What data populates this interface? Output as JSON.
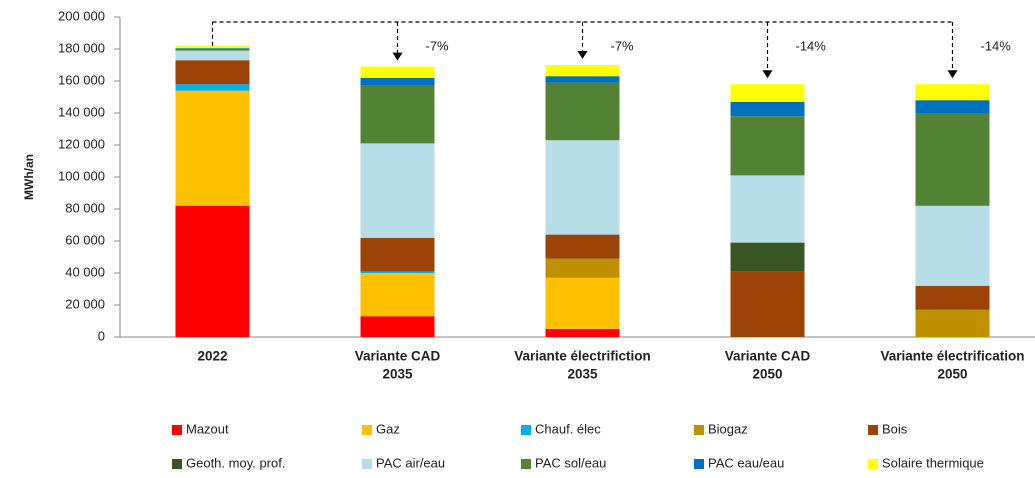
{
  "chart_data": {
    "type": "stacked_bar",
    "ylabel": "MWh/an",
    "categories": [
      [
        "2022"
      ],
      [
        "Variante CAD",
        "2035"
      ],
      [
        "Variante électrifiction",
        "2035"
      ],
      [
        "Variante CAD",
        "2050"
      ],
      [
        "Variante électrification",
        "2050"
      ]
    ],
    "series": [
      {
        "name": "Mazout",
        "color": "#ff0000",
        "values": [
          82000,
          13000,
          5000,
          0,
          0
        ]
      },
      {
        "name": "Gaz",
        "color": "#ffc000",
        "values": [
          72000,
          27000,
          32000,
          0,
          0
        ]
      },
      {
        "name": "Chauf. élec",
        "color": "#00b0f0",
        "values": [
          4000,
          1000,
          0,
          0,
          0
        ]
      },
      {
        "name": "Biogaz",
        "color": "#bf9000",
        "values": [
          0,
          0,
          12000,
          0,
          17000
        ]
      },
      {
        "name": "Bois",
        "color": "#9c4308",
        "values": [
          15000,
          21000,
          15000,
          41000,
          15000
        ]
      },
      {
        "name": "Geoth. moy. prof.",
        "color": "#375623",
        "values": [
          0,
          0,
          0,
          18000,
          0
        ]
      },
      {
        "name": "PAC air/eau",
        "color": "#b7dde8",
        "values": [
          6000,
          59000,
          59000,
          42000,
          50000
        ]
      },
      {
        "name": "PAC sol/eau",
        "color": "#548235",
        "values": [
          1000,
          36000,
          36000,
          37000,
          58000
        ]
      },
      {
        "name": "PAC eau/eau",
        "color": "#0070c0",
        "values": [
          500,
          5000,
          4000,
          9000,
          8000
        ]
      },
      {
        "name": "Solaire thermique",
        "color": "#ffff00",
        "values": [
          1500,
          7000,
          7000,
          11000,
          10000
        ]
      }
    ],
    "annotations": [
      "-7%",
      "-7%",
      "-14%",
      "-14%"
    ],
    "ylim": [
      0,
      200000
    ],
    "yticks": [
      {
        "value": 0,
        "label": "0"
      },
      {
        "value": 20000,
        "label": "20 000"
      },
      {
        "value": 40000,
        "label": "40 000"
      },
      {
        "value": 60000,
        "label": "60 000"
      },
      {
        "value": 80000,
        "label": "80 000"
      },
      {
        "value": 100000,
        "label": "100 000"
      },
      {
        "value": 120000,
        "label": "120 000"
      },
      {
        "value": 140000,
        "label": "140 000"
      },
      {
        "value": 160000,
        "label": "160 000"
      },
      {
        "value": 180000,
        "label": "180 000"
      },
      {
        "value": 200000,
        "label": "200 000"
      }
    ],
    "legend": "bottom"
  }
}
